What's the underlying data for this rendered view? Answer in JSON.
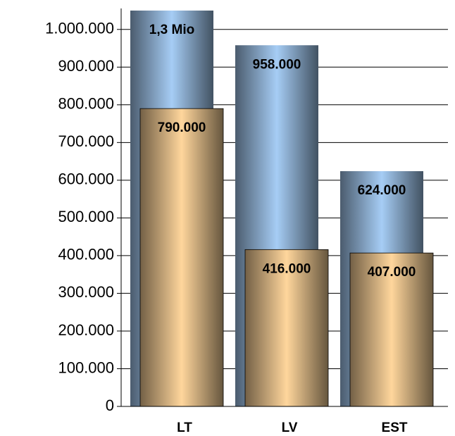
{
  "chart_data": {
    "type": "bar",
    "categories": [
      "LT",
      "LV",
      "EST"
    ],
    "series": [
      {
        "color": "#a6cdf5",
        "values": [
          1300000,
          958000,
          624000
        ],
        "value_labels": [
          "1,3 Mio",
          "958.000",
          "624.000"
        ]
      },
      {
        "color": "#ffd69c",
        "values": [
          790000,
          416000,
          407000
        ],
        "value_labels": [
          "790.000",
          "416.000",
          "407.000"
        ]
      }
    ],
    "ylim": [
      0,
      1050000
    ],
    "yticks": [
      0,
      {
        "value": 100000,
        "label": "100.000"
      },
      {
        "value": 200000,
        "label": "200.000"
      },
      {
        "value": 300000,
        "label": "300.000"
      },
      {
        "value": 400000,
        "label": "400.000"
      },
      {
        "value": 500000,
        "label": "500.000"
      },
      {
        "value": 600000,
        "label": "600.000"
      },
      {
        "value": 700000,
        "label": "700.000"
      },
      {
        "value": 800000,
        "label": "800.000"
      },
      {
        "value": 900000,
        "label": "900.000"
      },
      {
        "value": 1000000,
        "label": "1.000.000"
      }
    ],
    "grid": true
  }
}
